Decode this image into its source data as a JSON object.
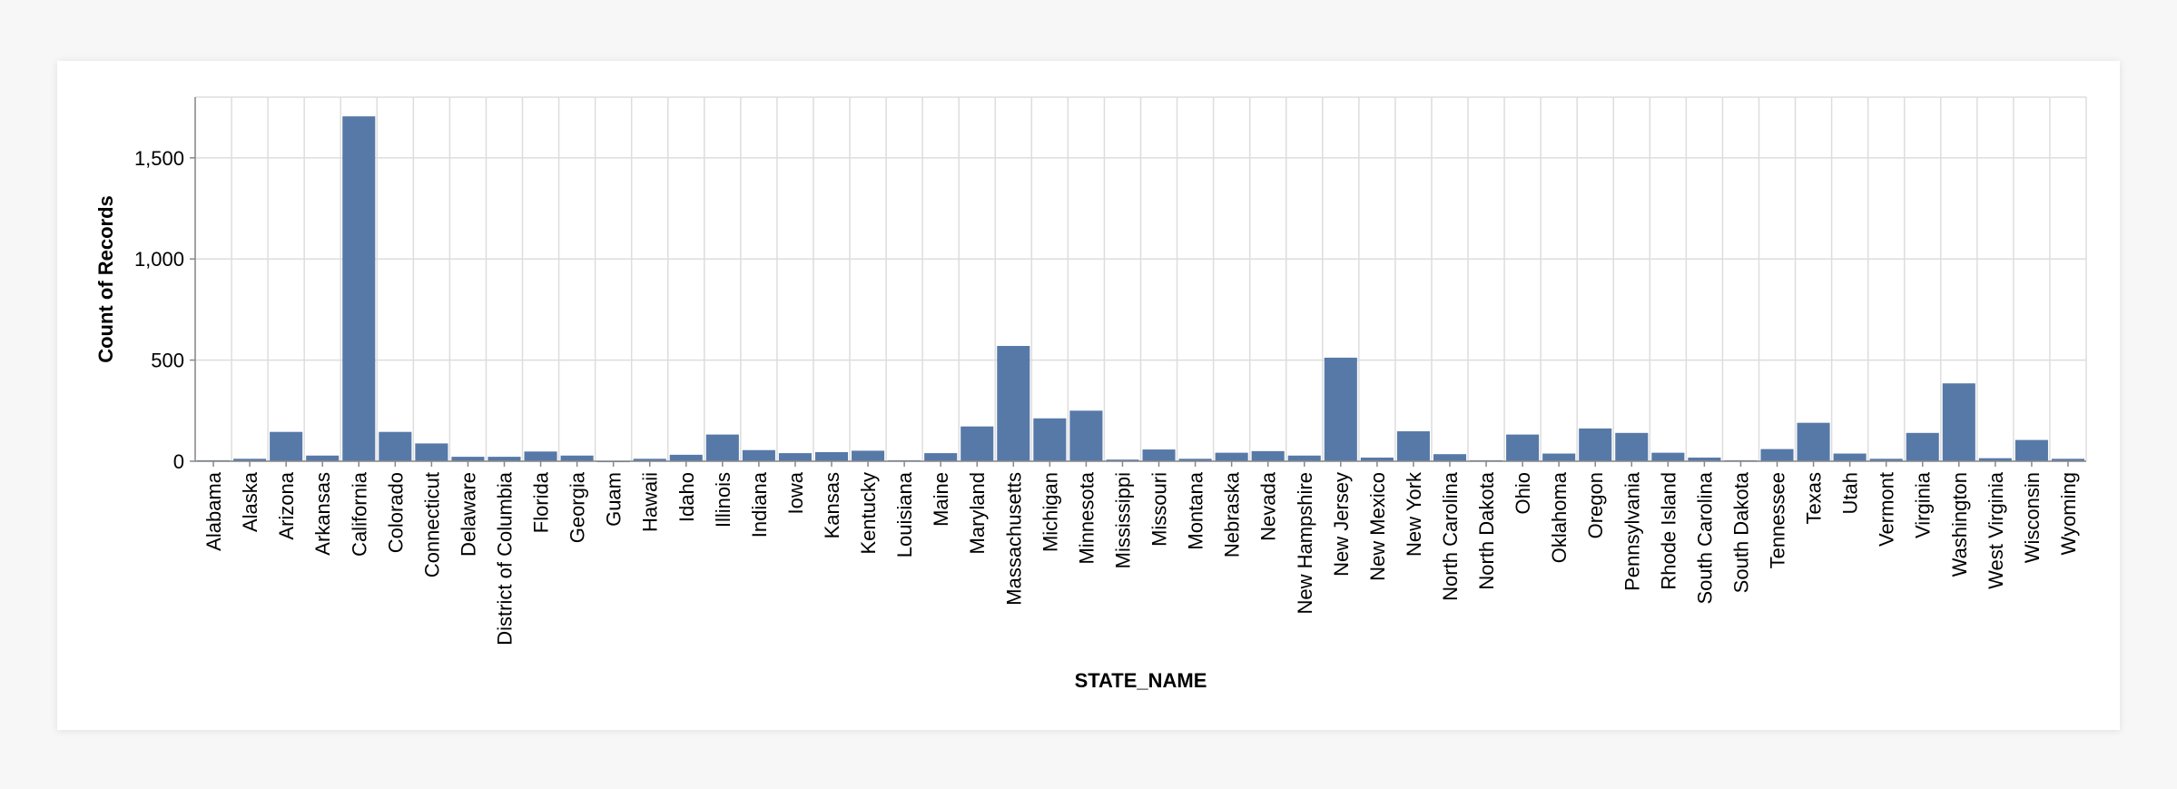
{
  "chart_data": {
    "type": "bar",
    "title": "",
    "xlabel": "STATE_NAME",
    "ylabel": "Count of Records",
    "ylim": [
      0,
      1800
    ],
    "yticks": [
      {
        "value": 0,
        "label": "0"
      },
      {
        "value": 500,
        "label": "500"
      },
      {
        "value": 1000,
        "label": "1,000"
      },
      {
        "value": 1500,
        "label": "1,500"
      }
    ],
    "grid": true,
    "bar_color": "#5779a8",
    "categories": [
      "Alabama",
      "Alaska",
      "Arizona",
      "Arkansas",
      "California",
      "Colorado",
      "Connecticut",
      "Delaware",
      "District of Columbia",
      "Florida",
      "Georgia",
      "Guam",
      "Hawaii",
      "Idaho",
      "Illinois",
      "Indiana",
      "Iowa",
      "Kansas",
      "Kentucky",
      "Louisiana",
      "Maine",
      "Maryland",
      "Massachusetts",
      "Michigan",
      "Minnesota",
      "Mississippi",
      "Missouri",
      "Montana",
      "Nebraska",
      "Nevada",
      "New Hampshire",
      "New Jersey",
      "New Mexico",
      "New York",
      "North Carolina",
      "North Dakota",
      "Ohio",
      "Oklahoma",
      "Oregon",
      "Pennsylvania",
      "Rhode Island",
      "South Carolina",
      "South Dakota",
      "Tennessee",
      "Texas",
      "Utah",
      "Vermont",
      "Virginia",
      "Washington",
      "West Virginia",
      "Wisconsin",
      "Wyoming"
    ],
    "values": [
      5,
      12,
      145,
      28,
      1705,
      145,
      88,
      22,
      22,
      48,
      28,
      2,
      12,
      32,
      132,
      55,
      40,
      45,
      52,
      5,
      40,
      172,
      570,
      212,
      250,
      8,
      58,
      12,
      42,
      50,
      28,
      512,
      18,
      148,
      35,
      5,
      132,
      38,
      162,
      140,
      42,
      18,
      5,
      60,
      190,
      38,
      12,
      140,
      385,
      15,
      105,
      12
    ]
  }
}
